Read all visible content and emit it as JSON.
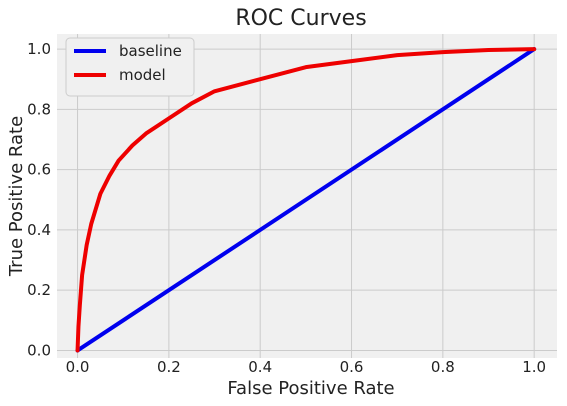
{
  "chart_data": {
    "type": "line",
    "title": "ROC Curves",
    "xlabel": "False Positive Rate",
    "ylabel": "True Positive Rate",
    "xlim": [
      -0.045,
      1.05
    ],
    "ylim": [
      -0.025,
      1.05
    ],
    "xticks": [
      0.0,
      0.2,
      0.4,
      0.6,
      0.8,
      1.0
    ],
    "xtick_labels": [
      "0.0",
      "0.2",
      "0.4",
      "0.6",
      "0.8",
      "1.0"
    ],
    "yticks": [
      0.0,
      0.2,
      0.4,
      0.6,
      0.8,
      1.0
    ],
    "ytick_labels": [
      "0.0",
      "0.2",
      "0.4",
      "0.6",
      "0.8",
      "1.0"
    ],
    "grid": true,
    "legend_position": "top-left",
    "background_color": "#f0f0f0",
    "grid_color": "#cbcbcb",
    "series": [
      {
        "name": "baseline",
        "color": "#0000ee",
        "x": [
          0.0,
          1.0
        ],
        "y": [
          0.0,
          1.0
        ]
      },
      {
        "name": "model",
        "color": "#ee0000",
        "x": [
          0.0,
          0.002,
          0.005,
          0.01,
          0.02,
          0.03,
          0.04,
          0.05,
          0.07,
          0.09,
          0.12,
          0.15,
          0.2,
          0.25,
          0.3,
          0.4,
          0.5,
          0.6,
          0.7,
          0.8,
          0.9,
          1.0
        ],
        "y": [
          0.0,
          0.08,
          0.15,
          0.25,
          0.35,
          0.42,
          0.47,
          0.52,
          0.58,
          0.63,
          0.68,
          0.72,
          0.77,
          0.82,
          0.86,
          0.9,
          0.94,
          0.96,
          0.98,
          0.99,
          0.997,
          1.0
        ]
      }
    ]
  }
}
